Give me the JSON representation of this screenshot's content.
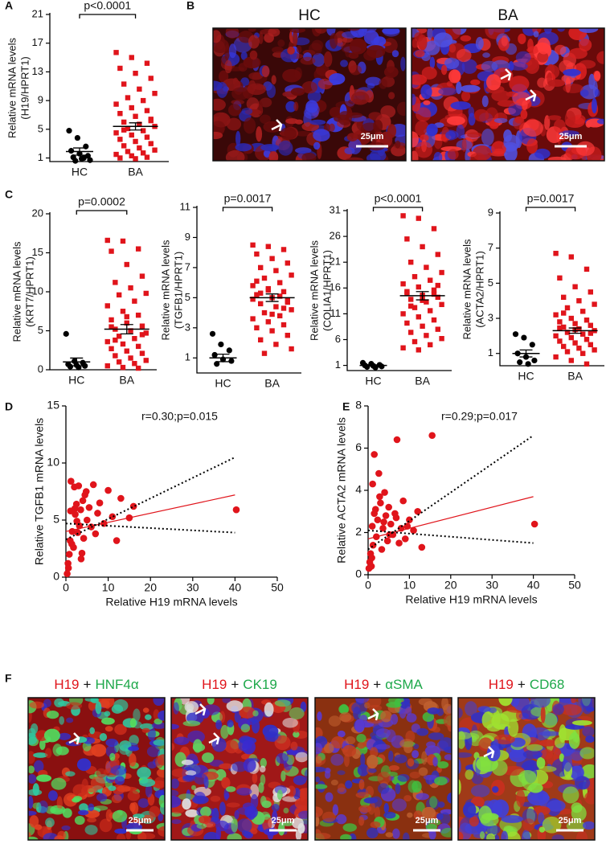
{
  "chart_data": [
    {
      "panel": "A",
      "type": "dotplot",
      "y_label": [
        "Relative mRNA levels",
        "(H19/HPRT1)"
      ],
      "annotation": "p<0.0001",
      "categories": [
        "HC",
        "BA"
      ],
      "ylim": [
        0.5,
        21
      ],
      "yticks": [
        1,
        5,
        9,
        13,
        17,
        21
      ],
      "groups": [
        {
          "color": "#000000",
          "marker": "circle",
          "mean": 1.9,
          "sem": 0.5,
          "values": [
            4.8,
            3.8,
            2.6,
            2.0,
            1.6,
            1.3,
            1.1,
            0.9,
            0.7,
            0.6,
            1.0
          ]
        },
        {
          "color": "#e0141b",
          "marker": "square",
          "mean": 5.4,
          "sem": 0.5,
          "values": [
            15.7,
            15,
            14.2,
            13.5,
            12.8,
            12.1,
            11.3,
            10.6,
            10,
            9.4,
            9,
            8.5,
            8,
            7.6,
            7.2,
            6.8,
            6.4,
            6,
            5.7,
            5.4,
            5.1,
            4.8,
            4.5,
            4.2,
            3.9,
            3.6,
            3.3,
            3,
            2.7,
            2.4,
            2.1,
            1.9,
            1.7,
            1.5,
            1.3,
            1.1,
            1,
            0.9,
            6.2,
            4.9
          ]
        }
      ]
    },
    {
      "panel": "C",
      "type": "dotplot",
      "y_label": [
        "Relative mRNA levels",
        "(KRT7/HPRT1)"
      ],
      "annotation": "p=0.0002",
      "categories": [
        "HC",
        "BA"
      ],
      "ylim": [
        0,
        20
      ],
      "yticks": [
        0,
        5,
        10,
        15,
        20
      ],
      "groups": [
        {
          "color": "#000000",
          "marker": "circle",
          "mean": 1.0,
          "sem": 0.5,
          "values": [
            4.6,
            1.1,
            0.9,
            0.7,
            0.6,
            0.5,
            0.4,
            0.3
          ]
        },
        {
          "color": "#e0141b",
          "marker": "square",
          "mean": 5.2,
          "sem": 0.6,
          "values": [
            16.6,
            16.5,
            15.5,
            15.2,
            13.5,
            12,
            11.2,
            10.5,
            9.8,
            9.6,
            8.8,
            8.2,
            7.5,
            7,
            6.4,
            6,
            5.6,
            5.2,
            5,
            4.7,
            4.3,
            4,
            3.6,
            3.3,
            3,
            2.7,
            2.4,
            2.1,
            1.8,
            1.5,
            1.2,
            1,
            0.8,
            0.5,
            0.3,
            0.2,
            5.5,
            6.8,
            4.5,
            3.8
          ]
        }
      ]
    },
    {
      "type": "dotplot",
      "y_label": [
        "Relative mRNA levels",
        "(TGFB1/HPRT1)"
      ],
      "annotation": "p=0.0017",
      "categories": [
        "HC",
        "BA"
      ],
      "ylim": [
        0,
        11
      ],
      "yticks": [
        1,
        3,
        5,
        7,
        9,
        11
      ],
      "groups": [
        {
          "color": "#000000",
          "marker": "circle",
          "mean": 1.0,
          "sem": 0.25,
          "values": [
            2.6,
            1.9,
            1.5,
            1.2,
            0.9,
            0.8,
            0.6
          ]
        },
        {
          "color": "#e0141b",
          "marker": "square",
          "mean": 5.0,
          "sem": 0.25,
          "values": [
            8.5,
            8.4,
            8.2,
            7.9,
            7.6,
            7.3,
            7,
            6.8,
            6.5,
            6.3,
            6,
            5.8,
            5.6,
            5.4,
            5.2,
            5,
            4.8,
            4.6,
            4.4,
            4.2,
            4,
            3.8,
            3.6,
            3.4,
            3.2,
            3,
            2.8,
            2.5,
            2.2,
            1.9,
            1.6,
            1.3,
            5.1,
            4.9,
            5.5,
            4.3,
            6.1,
            3.9,
            4.7,
            5.3
          ]
        }
      ]
    },
    {
      "type": "dotplot",
      "y_label": [
        "Relative mRNA levels",
        "(COLIA1/HPRT1)"
      ],
      "annotation": "p<0.0001",
      "categories": [
        "HC",
        "BA"
      ],
      "ylim": [
        0,
        31
      ],
      "yticks": [
        1,
        6,
        11,
        16,
        21,
        26,
        31
      ],
      "groups": [
        {
          "color": "#000000",
          "marker": "circle",
          "mean": 1.0,
          "sem": 0.1,
          "values": [
            1.5,
            1.3,
            1.1,
            1.0,
            0.9,
            0.8,
            0.7,
            0.6
          ]
        },
        {
          "color": "#e0141b",
          "marker": "square",
          "mean": 14.5,
          "sem": 0.8,
          "values": [
            30,
            29.5,
            27.5,
            25.5,
            24,
            22.5,
            21,
            20,
            19,
            18.2,
            17.5,
            16.8,
            16.2,
            15.6,
            15,
            14.6,
            14.2,
            13.8,
            13.3,
            12.8,
            12.2,
            11.6,
            11,
            10.4,
            9.8,
            9.2,
            8.6,
            8,
            7.4,
            6.8,
            6.2,
            5.6,
            5,
            4.4,
            4,
            14.8,
            15.3,
            13.6,
            16.5,
            12.5
          ]
        }
      ]
    },
    {
      "type": "dotplot",
      "y_label": [
        "Relative mRNA levels",
        "(ACTA2/HPRT1)"
      ],
      "annotation": "p=0.0017",
      "categories": [
        "HC",
        "BA"
      ],
      "ylim": [
        0.3,
        9
      ],
      "yticks": [
        1,
        3,
        5,
        7,
        9
      ],
      "groups": [
        {
          "color": "#000000",
          "marker": "circle",
          "mean": 1.0,
          "sem": 0.2,
          "values": [
            2.1,
            1.9,
            1.5,
            1.0,
            0.8,
            0.6,
            0.5,
            0.4
          ]
        },
        {
          "color": "#e0141b",
          "marker": "square",
          "mean": 2.3,
          "sem": 0.15,
          "values": [
            6.7,
            6.5,
            5.8,
            5.3,
            4.8,
            4.5,
            4.2,
            4,
            3.8,
            3.6,
            3.4,
            3.2,
            3,
            2.9,
            2.8,
            2.7,
            2.6,
            2.5,
            2.4,
            2.3,
            2.2,
            2.1,
            2,
            1.9,
            1.8,
            1.7,
            1.6,
            1.5,
            1.4,
            1.3,
            1.2,
            1.1,
            1,
            0.8,
            0.6,
            0.4,
            2.45,
            2.35,
            2.15,
            3.3
          ]
        }
      ]
    },
    {
      "panel": "D",
      "type": "scatter",
      "annotation": "r=0.30;p=0.015",
      "x_label": "Relative H19 mRNA levels",
      "y_label": "Relative TGFB1 mRNA levels",
      "color": "#e0141b",
      "xlim": [
        0,
        50
      ],
      "ylim": [
        0,
        15
      ],
      "xticks": [
        0,
        10,
        20,
        30,
        40,
        50
      ],
      "yticks": [
        0,
        5,
        10,
        15
      ],
      "x": [
        0.3,
        0.5,
        0.8,
        1,
        1.2,
        1.5,
        1.8,
        2,
        2.2,
        2.5,
        2.8,
        3,
        3.2,
        3.5,
        3.8,
        4,
        4.2,
        4.5,
        5,
        5.5,
        6,
        6.5,
        7,
        7.5,
        8,
        9,
        10,
        11,
        12,
        13,
        15,
        16,
        0.6,
        1.1,
        2.6,
        3.6,
        4.8,
        1.4,
        2.1,
        40.3
      ],
      "y": [
        0.3,
        1.2,
        2,
        3.2,
        8.4,
        4,
        2.6,
        7.9,
        5.5,
        6.4,
        3.9,
        8,
        4.5,
        5.9,
        2.1,
        6.7,
        3.4,
        7.2,
        5,
        6.1,
        4.4,
        8.1,
        3.8,
        5.6,
        6.5,
        4.7,
        7.6,
        5.3,
        3.2,
        6.9,
        5.2,
        6.2,
        0.8,
        5.8,
        4.9,
        1.6,
        7.5,
        2.9,
        6,
        5.9
      ],
      "fit": {
        "color": "#e0141b",
        "x": [
          0,
          40
        ],
        "y": [
          4.0,
          7.2
        ]
      },
      "bands": [
        {
          "x": [
            0,
            40
          ],
          "y": [
            3.3,
            10.5
          ]
        },
        {
          "x": [
            0,
            40
          ],
          "y": [
            4.7,
            3.9
          ]
        }
      ]
    },
    {
      "panel": "E",
      "type": "scatter",
      "annotation": "r=0.29;p=0.017",
      "x_label": "Relative H19 mRNA levels",
      "y_label": "Relative ACTA2 mRNA levels",
      "color": "#e0141b",
      "xlim": [
        0,
        50
      ],
      "ylim": [
        0,
        8
      ],
      "xticks": [
        0,
        10,
        20,
        30,
        40,
        50
      ],
      "yticks": [
        0,
        2,
        4,
        6,
        8
      ],
      "x": [
        0.2,
        0.4,
        0.6,
        0.8,
        1,
        1.2,
        1.5,
        1.8,
        2,
        2.3,
        2.6,
        3,
        3.3,
        3.6,
        4,
        4.3,
        4.7,
        5,
        5.5,
        6,
        6.5,
        7,
        7.5,
        8,
        8.5,
        9,
        10,
        11,
        12,
        13,
        15.5,
        1.5,
        0.9,
        2.8,
        3.8,
        5.2,
        6.8,
        9.5,
        1.1,
        40.3
      ],
      "y": [
        0.3,
        0.6,
        1,
        0.4,
        2.3,
        1.4,
        5.7,
        3.1,
        1.8,
        2.6,
        4.8,
        3.4,
        1.2,
        2.2,
        3.9,
        2.8,
        1.6,
        3.2,
        2.4,
        1.9,
        2.9,
        6.4,
        1.5,
        2.2,
        3.5,
        1.7,
        2.6,
        2.1,
        3,
        1.3,
        6.6,
        2.9,
        0.8,
        3.7,
        2.5,
        1.9,
        2.7,
        2.3,
        4.3,
        2.4
      ],
      "fit": {
        "color": "#e0141b",
        "x": [
          0,
          40
        ],
        "y": [
          1.7,
          3.7
        ]
      },
      "bands": [
        {
          "x": [
            0,
            40
          ],
          "y": [
            1.2,
            6.6
          ]
        },
        {
          "x": [
            0,
            40
          ],
          "y": [
            2.1,
            1.5
          ]
        }
      ]
    }
  ],
  "images": [
    {
      "panel": "B",
      "items": [
        {
          "title": "HC",
          "scale_bar": "25μm"
        },
        {
          "title": "BA",
          "scale_bar": "25μm"
        }
      ]
    },
    {
      "panel": "F",
      "items": [
        {
          "title_parts": [
            "H19",
            "+",
            "HNF4α"
          ],
          "scale_bar": "25μm"
        },
        {
          "title_parts": [
            "H19",
            "+",
            "CK19"
          ],
          "scale_bar": "25μm"
        },
        {
          "title_parts": [
            "H19",
            "+",
            "αSMA"
          ],
          "scale_bar": "25μm"
        },
        {
          "title_parts": [
            "H19",
            "+",
            "CD68"
          ],
          "scale_bar": "25μm"
        }
      ]
    }
  ]
}
